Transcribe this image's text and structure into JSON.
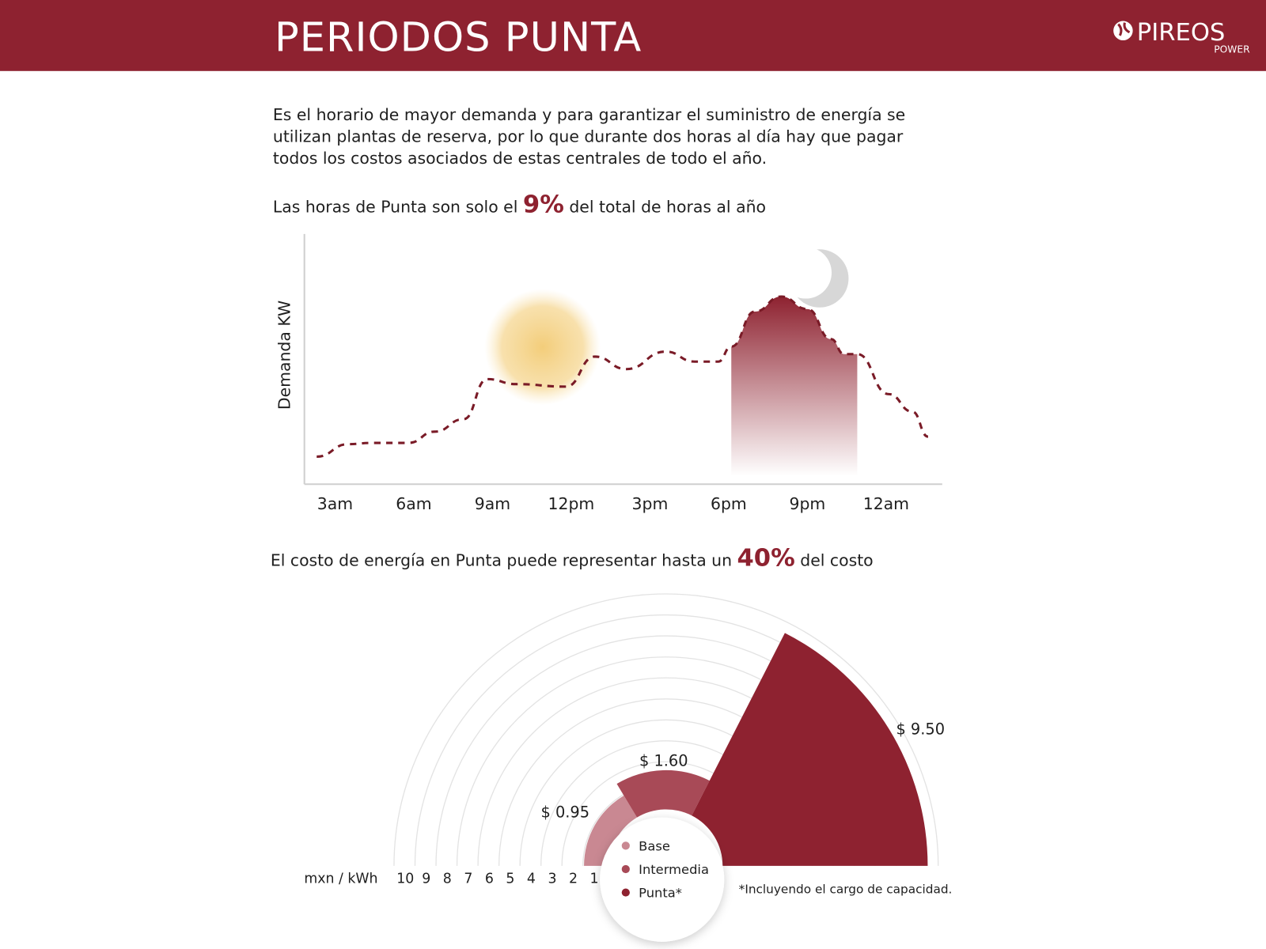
{
  "header": {
    "title": "PERIODOS PUNTA",
    "logo_name": "PIREOS",
    "logo_sub": "POWER",
    "bg_color": "#8e2230"
  },
  "intro": {
    "lines": [
      "Es el horario de mayor demanda y para garantizar el suministro de energía se",
      "utilizan plantas de reserva, por lo que durante dos horas al día hay que pagar",
      "todos los costos asociados de estas centrales de todo el  año."
    ]
  },
  "stat1": {
    "before": "Las horas de Punta son solo el ",
    "value": "9%",
    "after": " del total de horas al año"
  },
  "stat2": {
    "before": "El costo de energía en Punta puede representar hasta un ",
    "value": "40%",
    "after": " del costo"
  },
  "footnote": "*Incluyendo el cargo de capacidad.",
  "icons": {
    "sun": "sun-icon",
    "moon": "moon-icon",
    "logo": "globe-icon"
  },
  "chart_data": [
    {
      "type": "line",
      "ylabel": "Demanda KW",
      "xlabel": "",
      "x_tick_labels": [
        "3am",
        "6am",
        "9am",
        "12pm",
        "3pm",
        "6pm",
        "9pm",
        "12am"
      ],
      "x_ticks": [
        3,
        6,
        9,
        12,
        15,
        18,
        21,
        24
      ],
      "x_unit": "hour of day",
      "line_style": "dashed",
      "line_color": "#7a1b27",
      "highlight_range": [
        18.1,
        22.9
      ],
      "highlight_color": "#8e2230",
      "x": [
        2.3,
        3.5,
        4.4,
        5.8,
        6.8,
        7.9,
        8.8,
        9.9,
        11.8,
        12.9,
        14.1,
        15.6,
        16.7,
        17.6,
        18.1,
        19.0,
        20.0,
        21.0,
        21.9,
        22.4,
        22.9,
        24.1,
        25.0,
        25.6
      ],
      "y": [
        11,
        16,
        16.5,
        16.5,
        21,
        26,
        42,
        40,
        39,
        51,
        46,
        53,
        49,
        49,
        55,
        69,
        75,
        70,
        58,
        52,
        52,
        36,
        29,
        19
      ],
      "y_note_relative": true
    },
    {
      "type": "pie",
      "subtype": "polar-area half",
      "unit_label": "mxn / kWh",
      "radial_ticks": [
        "10",
        "9",
        "8",
        "7",
        "6",
        "5",
        "4",
        "3",
        "2",
        "1"
      ],
      "radial_max": 10,
      "categories": [
        "Base",
        "Intermedia",
        "Punta*"
      ],
      "values": [
        0.95,
        1.6,
        9.5
      ],
      "value_labels": [
        "$ 0.95",
        "$ 1.60",
        "$ 9.50"
      ],
      "colors": [
        "#c98892",
        "#a84a57",
        "#8e2230"
      ],
      "legend": "center"
    }
  ]
}
